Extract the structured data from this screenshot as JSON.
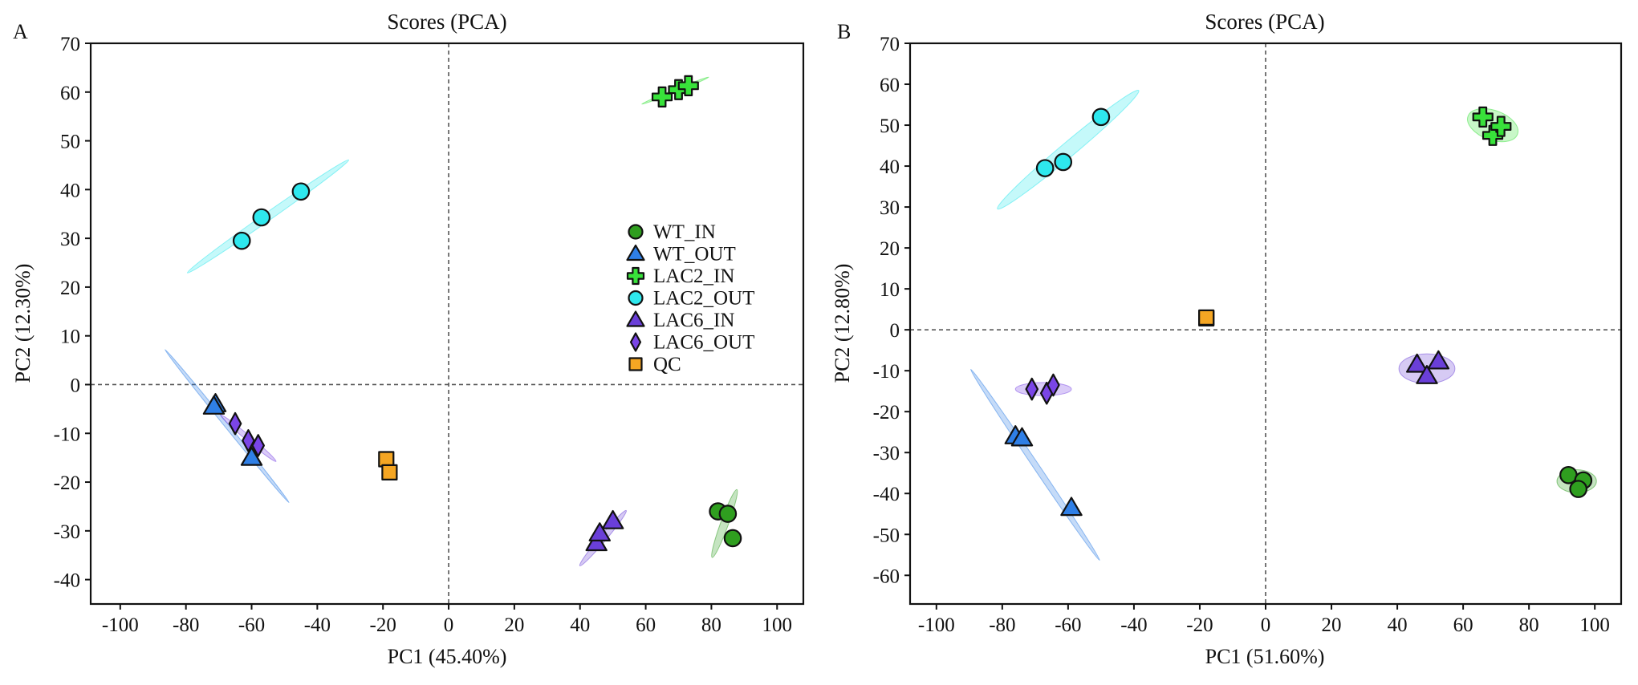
{
  "chart_data": [
    {
      "panel_label": "A",
      "type": "scatter",
      "title": "Scores (PCA)",
      "xlabel": "PC1 (45.40%)",
      "ylabel": "PC2 (12.30%)",
      "xlim": [
        -109,
        108
      ],
      "ylim": [
        -45,
        70
      ],
      "xticks": [
        -100,
        -80,
        -60,
        -40,
        -20,
        0,
        20,
        40,
        60,
        80,
        100
      ],
      "yticks": [
        70,
        60,
        50,
        40,
        30,
        20,
        10,
        0,
        -10,
        -20,
        -30,
        -40
      ],
      "reference_lines": {
        "x": 0,
        "y": 0,
        "style": "dashed"
      },
      "legend": {
        "position": "right-center"
      },
      "series": [
        {
          "name": "WT_IN",
          "marker": "circle",
          "color": "#2f9e1f",
          "points": [
            [
              82,
              -26
            ],
            [
              85,
              -26.5
            ],
            [
              86.5,
              -31.5
            ]
          ],
          "ellipse": {
            "cx": 84,
            "cy": -28.5,
            "rx": 11,
            "ry": 1.2,
            "angle_deg": 70
          }
        },
        {
          "name": "WT_OUT",
          "marker": "triangle",
          "color": "#2f7fe6",
          "points": [
            [
              -71,
              -4
            ],
            [
              -71.5,
              -4.5
            ],
            [
              -60,
              -15
            ]
          ],
          "ellipse": {
            "cx": -67.5,
            "cy": -8.5,
            "rx": 30,
            "ry": 0.6,
            "angle_deg": -51
          }
        },
        {
          "name": "LAC2_IN",
          "marker": "cross",
          "color": "#38e23a",
          "points": [
            [
              65,
              59
            ],
            [
              70,
              60.5
            ],
            [
              73,
              61.3
            ]
          ],
          "ellipse": {
            "cx": 69,
            "cy": 60.3,
            "rx": 11,
            "ry": 0.4,
            "angle_deg": 22
          }
        },
        {
          "name": "LAC2_OUT",
          "marker": "circle",
          "color": "#2ee8ee",
          "points": [
            [
              -63,
              29.5
            ],
            [
              -57,
              34.3
            ],
            [
              -45,
              39.6
            ]
          ],
          "ellipse": {
            "cx": -55,
            "cy": 34.5,
            "rx": 30,
            "ry": 1.2,
            "angle_deg": 35
          }
        },
        {
          "name": "LAC6_IN",
          "marker": "triangle",
          "color": "#6a3fd8",
          "points": [
            [
              45,
              -32.5
            ],
            [
              46,
              -30.5
            ],
            [
              50,
              -28
            ]
          ],
          "ellipse": {
            "cx": 47,
            "cy": -31.5,
            "rx": 11,
            "ry": 1,
            "angle_deg": 50
          }
        },
        {
          "name": "LAC6_OUT",
          "marker": "diamond",
          "color": "#7a45e6",
          "points": [
            [
              -65,
              -8
            ],
            [
              -61,
              -11.5
            ],
            [
              -58,
              -12.5
            ]
          ],
          "ellipse": {
            "cx": -61,
            "cy": -11,
            "rx": 11,
            "ry": 0.8,
            "angle_deg": -40
          }
        },
        {
          "name": "QC",
          "marker": "square",
          "color": "#f5a623",
          "points": [
            [
              -19,
              -15.3
            ],
            [
              -18,
              -18
            ]
          ]
        }
      ]
    },
    {
      "panel_label": "B",
      "type": "scatter",
      "title": "Scores (PCA)",
      "xlabel": "PC1 (51.60%)",
      "ylabel": "PC2 (12.80%)",
      "xlim": [
        -108,
        108
      ],
      "ylim": [
        -67,
        70
      ],
      "xticks": [
        -100,
        -80,
        -60,
        -40,
        -20,
        0,
        20,
        40,
        60,
        80,
        100
      ],
      "yticks": [
        70,
        60,
        50,
        40,
        30,
        20,
        10,
        0,
        -10,
        -20,
        -30,
        -40,
        -50,
        -60
      ],
      "reference_lines": {
        "x": 0,
        "y": 0,
        "style": "dashed"
      },
      "series": [
        {
          "name": "WT_IN",
          "marker": "circle",
          "color": "#2f9e1f",
          "points": [
            [
              92,
              -35.5
            ],
            [
              96.5,
              -36.8
            ],
            [
              95,
              -38.9
            ]
          ],
          "ellipse": {
            "cx": 94.5,
            "cy": -37,
            "rx": 6,
            "ry": 3.5,
            "angle_deg": 0
          }
        },
        {
          "name": "WT_OUT",
          "marker": "triangle",
          "color": "#2f7fe6",
          "points": [
            [
              -76,
              -26
            ],
            [
              -74,
              -26.5
            ],
            [
              -59,
              -43.5
            ]
          ],
          "ellipse": {
            "cx": -70,
            "cy": -33,
            "rx": 35,
            "ry": 0.9,
            "angle_deg": -56
          }
        },
        {
          "name": "LAC2_IN",
          "marker": "cross",
          "color": "#38e23a",
          "points": [
            [
              66,
              52
            ],
            [
              69,
              47.5
            ],
            [
              71.5,
              49.7
            ]
          ],
          "ellipse": {
            "cx": 69,
            "cy": 50,
            "rx": 8,
            "ry": 4.5,
            "angle_deg": -20
          }
        },
        {
          "name": "LAC2_OUT",
          "marker": "circle",
          "color": "#2ee8ee",
          "points": [
            [
              -67,
              39.5
            ],
            [
              -61.5,
              41
            ],
            [
              -50,
              52
            ]
          ],
          "ellipse": {
            "cx": -60,
            "cy": 44,
            "rx": 28,
            "ry": 2.2,
            "angle_deg": 40
          }
        },
        {
          "name": "LAC6_IN",
          "marker": "triangle",
          "color": "#6a3fd8",
          "points": [
            [
              46,
              -8.5
            ],
            [
              49,
              -11.3
            ],
            [
              52.5,
              -7.7
            ]
          ],
          "ellipse": {
            "cx": 49,
            "cy": -9.5,
            "rx": 8.5,
            "ry": 4.5,
            "angle_deg": 0
          }
        },
        {
          "name": "LAC6_OUT",
          "marker": "diamond",
          "color": "#7a45e6",
          "points": [
            [
              -71,
              -14.5
            ],
            [
              -66.5,
              -15.5
            ],
            [
              -64.5,
              -13.5
            ]
          ],
          "ellipse": {
            "cx": -67.5,
            "cy": -14.5,
            "rx": 8.5,
            "ry": 2,
            "angle_deg": 0
          }
        },
        {
          "name": "QC",
          "marker": "square",
          "color": "#f5a623",
          "points": [
            [
              -18,
              2.8
            ],
            [
              -18,
              3
            ]
          ]
        }
      ]
    }
  ]
}
